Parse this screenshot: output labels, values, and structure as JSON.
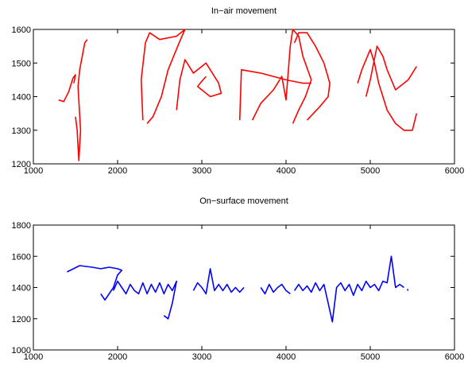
{
  "chart_data": [
    {
      "type": "line",
      "title": "In−air movement",
      "x": [
        1300,
        1360,
        1420,
        1470,
        1500,
        1480,
        null,
        1500,
        1520,
        1540,
        1560,
        1530,
        1550,
        1580,
        1610,
        1640,
        null,
        2300,
        2280,
        2330,
        2380,
        2500,
        2700,
        2800,
        2730,
        2600,
        2520,
        2420,
        2350,
        null,
        2700,
        2740,
        2800,
        2900,
        3050,
        3200,
        3230,
        3100,
        3000,
        2950,
        2980,
        3050,
        null,
        3450,
        3470,
        3700,
        4000,
        4200,
        4300,
        null,
        3600,
        3700,
        3850,
        3950,
        4000,
        4050,
        4080,
        4150,
        4200,
        4300,
        4230,
        4150,
        4080,
        null,
        4100,
        4150,
        4250,
        4350,
        4450,
        4520,
        4500,
        4400,
        4250,
        null,
        4850,
        4900,
        5000,
        5050,
        5100,
        5150,
        5200,
        5300,
        5400,
        5500,
        5550,
        null,
        4950,
        5000,
        5080,
        5150,
        5200,
        5300,
        5450,
        5550
      ],
      "values": [
        1390,
        1385,
        1415,
        1455,
        1465,
        1440,
        null,
        1340,
        1300,
        1210,
        1300,
        1430,
        1480,
        1520,
        1560,
        1570,
        null,
        1330,
        1450,
        1560,
        1590,
        1570,
        1580,
        1600,
        1560,
        1480,
        1400,
        1340,
        1320,
        null,
        1360,
        1450,
        1510,
        1470,
        1500,
        1440,
        1410,
        1400,
        1420,
        1430,
        1440,
        1460,
        null,
        1330,
        1480,
        1470,
        1450,
        1440,
        1440,
        null,
        1330,
        1380,
        1420,
        1460,
        1390,
        1550,
        1600,
        1580,
        1520,
        1450,
        1400,
        1360,
        1320,
        null,
        1560,
        1590,
        1590,
        1550,
        1500,
        1440,
        1400,
        1370,
        1330,
        null,
        1440,
        1480,
        1540,
        1500,
        1440,
        1400,
        1360,
        1320,
        1300,
        1300,
        1350,
        null,
        1400,
        1450,
        1550,
        1520,
        1480,
        1420,
        1450,
        1490
      ],
      "color": "#ff0000",
      "xlim": [
        1000,
        6000
      ],
      "xticks": [
        1000,
        2000,
        3000,
        4000,
        5000,
        6000
      ],
      "ylim": [
        1200,
        1600
      ],
      "yticks": [
        1200,
        1300,
        1400,
        1500,
        1600
      ]
    },
    {
      "type": "line",
      "title": "On−surface movement",
      "x": [
        1400,
        1550,
        1700,
        1800,
        1900,
        2000,
        2050,
        2000,
        1950,
        1850,
        1800,
        null,
        1950,
        2000,
        2050,
        2100,
        2150,
        2200,
        2250,
        2300,
        2350,
        2400,
        2450,
        2500,
        2550,
        2600,
        2650,
        2700,
        2650,
        2600,
        2550,
        null,
        2900,
        2950,
        3000,
        3050,
        3100,
        3150,
        3200,
        3250,
        3300,
        3350,
        3400,
        3450,
        3500,
        null,
        3700,
        3750,
        3800,
        3850,
        3900,
        3950,
        4000,
        4050,
        null,
        4100,
        4150,
        4200,
        4250,
        4300,
        4350,
        4400,
        4450,
        4500,
        4550,
        4600,
        4650,
        4700,
        4750,
        4800,
        4850,
        4900,
        4950,
        5000,
        5050,
        5100,
        5150,
        5200,
        5250,
        5300,
        5350,
        5400,
        null,
        5440,
        5450
      ],
      "values": [
        1500,
        1540,
        1530,
        1520,
        1530,
        1520,
        1510,
        1480,
        1400,
        1320,
        1360,
        null,
        1380,
        1440,
        1400,
        1360,
        1420,
        1380,
        1360,
        1430,
        1360,
        1420,
        1370,
        1430,
        1360,
        1420,
        1380,
        1440,
        1300,
        1200,
        1220,
        null,
        1380,
        1430,
        1400,
        1360,
        1520,
        1380,
        1420,
        1380,
        1420,
        1370,
        1400,
        1370,
        1400,
        null,
        1400,
        1360,
        1420,
        1370,
        1400,
        1420,
        1380,
        1360,
        null,
        1380,
        1420,
        1380,
        1410,
        1370,
        1430,
        1380,
        1420,
        1300,
        1180,
        1400,
        1430,
        1380,
        1420,
        1350,
        1420,
        1380,
        1440,
        1400,
        1420,
        1380,
        1440,
        1430,
        1600,
        1400,
        1420,
        1400,
        null,
        1390,
        1380
      ],
      "color": "#0000ff",
      "xlim": [
        1000,
        6000
      ],
      "xticks": [
        1000,
        2000,
        3000,
        4000,
        5000,
        6000
      ],
      "ylim": [
        1000,
        1800
      ],
      "yticks": [
        1000,
        1200,
        1400,
        1600,
        1800
      ]
    }
  ]
}
